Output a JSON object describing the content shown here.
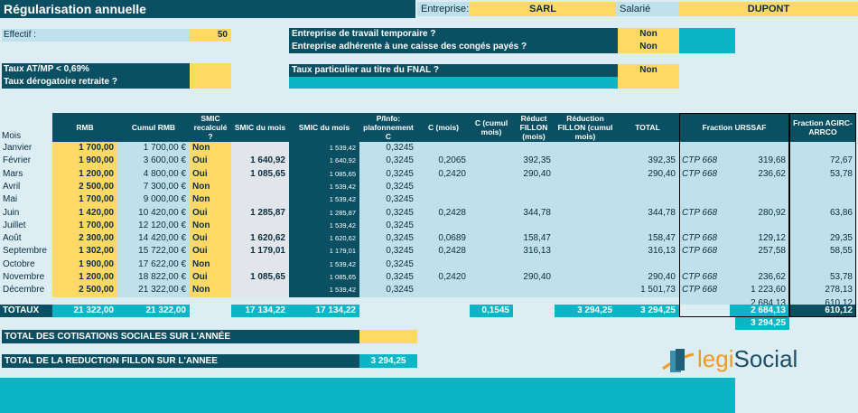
{
  "title": "Régularisation annuelle",
  "header": {
    "entreprise_label": "Entreprise:",
    "entreprise": "SARL",
    "salarie_label": "Salarié",
    "salarie": "DUPONT"
  },
  "effectif": {
    "label": "Effectif :",
    "value": "50"
  },
  "questions": [
    {
      "label": "Entreprise de travail temporaire ?",
      "value": "Non"
    },
    {
      "label": "Entreprise adhérente à une caisse des congés payés ?",
      "value": "Non"
    }
  ],
  "taux": {
    "label1": "Taux AT/MP < 0,69%",
    "label2": "Taux dérogatoire retraite ?"
  },
  "fnal": {
    "label": "Taux particulier au titre du FNAL ?",
    "value": "Non"
  },
  "columns": {
    "mois": "Mois",
    "rmb": "RMB",
    "cumul_rmb": "Cumul RMB",
    "smic_recalcule": "SMIC recalculé ?",
    "smic_mois_y": "SMIC du mois",
    "smic_mois": "SMIC du mois",
    "pinfo": "P/Info: plafonnement C",
    "c_mois": "C (mois)",
    "c_cumul": "C (cumul mois)",
    "reduct_fillon": "Réduct FILLON (mois)",
    "reduction_cumul": "Réduction FILLON (cumul mois)",
    "total": "TOTAL",
    "urssaf": "Fraction URSSAF",
    "agirc": "Fraction AGIRC-ARRCO"
  },
  "rows": [
    {
      "mois": "Janvier",
      "rmb": "1 700,00",
      "cumul": "1 700,00 €",
      "recalc": "Non",
      "smic_y": "",
      "smic": "1 539,42",
      "p": "0,3245",
      "c": "",
      "rf": "",
      "total": "",
      "ctp": "",
      "urssaf": "",
      "agirc": ""
    },
    {
      "mois": "Février",
      "rmb": "1 900,00",
      "cumul": "3 600,00 €",
      "recalc": "Oui",
      "smic_y": "1 640,92",
      "smic": "1 640,92",
      "p": "0,3245",
      "c": "0,2065",
      "rf": "392,35",
      "total": "392,35",
      "ctp": "CTP 668",
      "urssaf": "319,68",
      "agirc": "72,67"
    },
    {
      "mois": "Mars",
      "rmb": "1 200,00",
      "cumul": "4 800,00 €",
      "recalc": "Oui",
      "smic_y": "1 085,65",
      "smic": "1 085,65",
      "p": "0,3245",
      "c": "0,2420",
      "rf": "290,40",
      "total": "290,40",
      "ctp": "CTP 668",
      "urssaf": "236,62",
      "agirc": "53,78"
    },
    {
      "mois": "Avril",
      "rmb": "2 500,00",
      "cumul": "7 300,00 €",
      "recalc": "Non",
      "smic_y": "",
      "smic": "1 539,42",
      "p": "0,3245",
      "c": "",
      "rf": "",
      "total": "",
      "ctp": "",
      "urssaf": "",
      "agirc": ""
    },
    {
      "mois": "Mai",
      "rmb": "1 700,00",
      "cumul": "9 000,00 €",
      "recalc": "Non",
      "smic_y": "",
      "smic": "1 539,42",
      "p": "0,3245",
      "c": "",
      "rf": "",
      "total": "",
      "ctp": "",
      "urssaf": "",
      "agirc": ""
    },
    {
      "mois": "Juin",
      "rmb": "1 420,00",
      "cumul": "10 420,00 €",
      "recalc": "Oui",
      "smic_y": "1 285,87",
      "smic": "1 285,87",
      "p": "0,3245",
      "c": "0,2428",
      "rf": "344,78",
      "total": "344,78",
      "ctp": "CTP 668",
      "urssaf": "280,92",
      "agirc": "63,86"
    },
    {
      "mois": "Juillet",
      "rmb": "1 700,00",
      "cumul": "12 120,00 €",
      "recalc": "Non",
      "smic_y": "",
      "smic": "1 539,42",
      "p": "0,3245",
      "c": "",
      "rf": "",
      "total": "",
      "ctp": "",
      "urssaf": "",
      "agirc": ""
    },
    {
      "mois": "Août",
      "rmb": "2 300,00",
      "cumul": "14 420,00 €",
      "recalc": "Oui",
      "smic_y": "1 620,62",
      "smic": "1 620,62",
      "p": "0,3245",
      "c": "0,0689",
      "rf": "158,47",
      "total": "158,47",
      "ctp": "CTP 668",
      "urssaf": "129,12",
      "agirc": "29,35"
    },
    {
      "mois": "Septembre",
      "rmb": "1 302,00",
      "cumul": "15 722,00 €",
      "recalc": "Oui",
      "smic_y": "1 179,01",
      "smic": "1 179,01",
      "p": "0,3245",
      "c": "0,2428",
      "rf": "316,13",
      "total": "316,13",
      "ctp": "CTP 668",
      "urssaf": "257,58",
      "agirc": "58,55"
    },
    {
      "mois": "Octobre",
      "rmb": "1 900,00",
      "cumul": "17 622,00 €",
      "recalc": "Non",
      "smic_y": "",
      "smic": "1 539,42",
      "p": "0,3245",
      "c": "",
      "rf": "",
      "total": "",
      "ctp": "",
      "urssaf": "",
      "agirc": ""
    },
    {
      "mois": "Novembre",
      "rmb": "1 200,00",
      "cumul": "18 822,00 €",
      "recalc": "Oui",
      "smic_y": "1 085,65",
      "smic": "1 085,65",
      "p": "0,3245",
      "c": "0,2420",
      "rf": "290,40",
      "total": "290,40",
      "ctp": "CTP 668",
      "urssaf": "236,62",
      "agirc": "53,78"
    },
    {
      "mois": "Décembre",
      "rmb": "2 500,00",
      "cumul": "21 322,00 €",
      "recalc": "Non",
      "smic_y": "",
      "smic": "1 539,42",
      "p": "0,3245",
      "c": "",
      "rf": "",
      "total": "1 501,73",
      "ctp": "CTP 668",
      "urssaf": "1 223,60",
      "agirc": "278,13"
    }
  ],
  "extra_row": {
    "urssaf": "2 684,13",
    "agirc": "610,12"
  },
  "totaux": {
    "label": "TOTAUX",
    "rmb": "21 322,00",
    "cumul": "21 322,00",
    "smic_y": "17 134,22",
    "smic": "17 134,22",
    "c_cumul": "0,1545",
    "reduction_cumul": "3 294,25",
    "total": "3 294,25",
    "urssaf": "2 684,13",
    "agirc": "610,12",
    "urssaf_sum": "3 294,25"
  },
  "total_cotisations": {
    "label": "TOTAL DES COTISATIONS SOCIALES SUR L'ANNÉE",
    "value": ""
  },
  "total_reduction": {
    "label": "TOTAL DE LA REDUCTION FILLON SUR L'ANNEE",
    "value": "3 294,25"
  },
  "logo": {
    "text_a": "legi",
    "text_b": "Social"
  }
}
